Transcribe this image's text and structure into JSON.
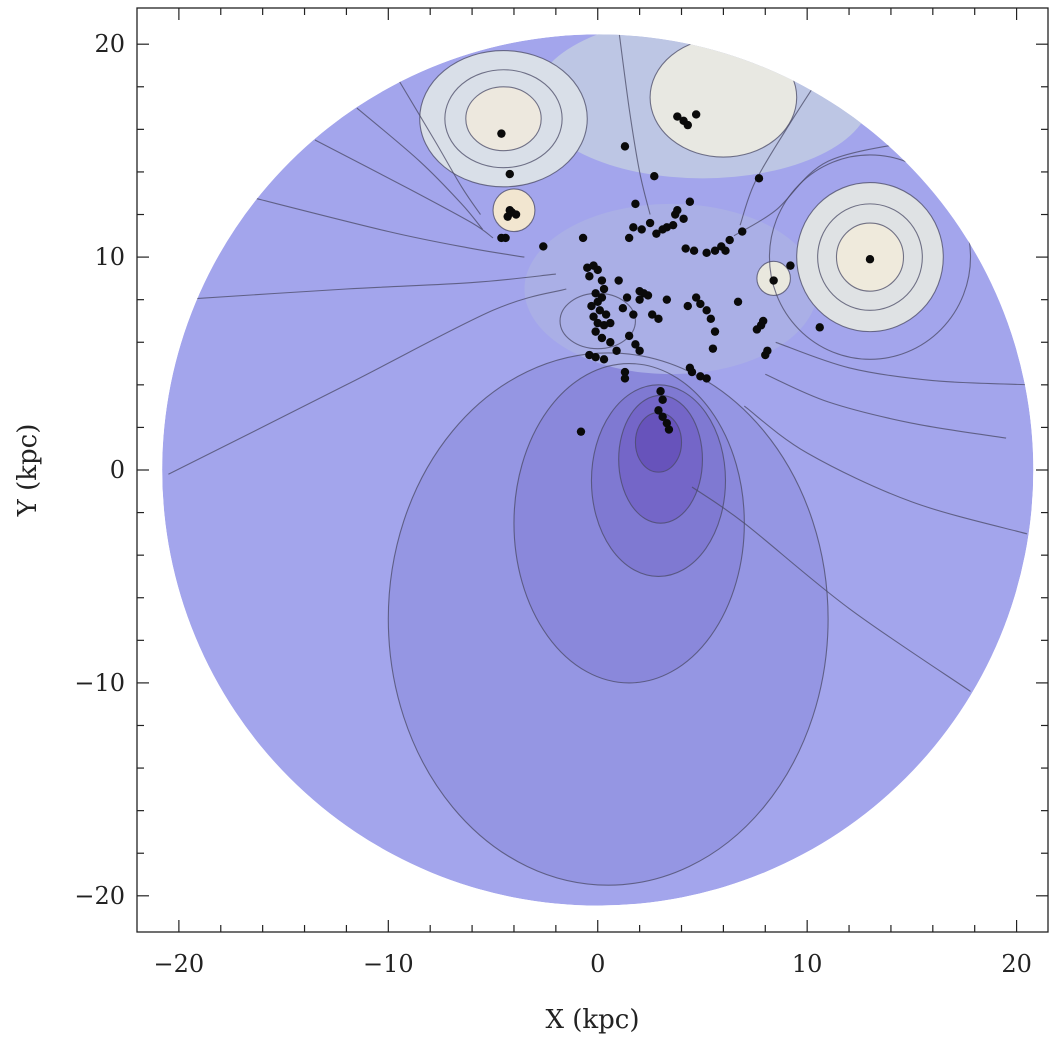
{
  "chart_data": {
    "type": "contour",
    "title": "",
    "xlabel": "X (kpc)",
    "ylabel": "Y (kpc)",
    "xlim": [
      -22,
      21.5
    ],
    "ylim": [
      -21.7,
      21.7
    ],
    "disk_radius_kpc": 20.8,
    "x_ticks": [
      {
        "value": -20,
        "label": "−20"
      },
      {
        "value": -10,
        "label": "−10"
      },
      {
        "value": 0,
        "label": "0"
      },
      {
        "value": 10,
        "label": "10"
      },
      {
        "value": 20,
        "label": "20"
      }
    ],
    "y_ticks": [
      {
        "value": 20,
        "label": "20"
      },
      {
        "value": 10,
        "label": "10"
      },
      {
        "value": 0,
        "label": "0"
      },
      {
        "value": -10,
        "label": "−10"
      },
      {
        "value": -20,
        "label": "−20"
      }
    ],
    "minor_tick_step": 2,
    "colors": {
      "disk_base": "#a3a5ec",
      "contour_line": "#4a4a66",
      "point": "#0a0a0a",
      "peak_fill": "#f2ecda"
    },
    "level_fills": [
      {
        "cx": 0.5,
        "cy": -7,
        "rx": 10.5,
        "ry": 12.5,
        "color": "#9596e3"
      },
      {
        "cx": 1.5,
        "cy": -2.5,
        "rx": 5.5,
        "ry": 7.5,
        "color": "#8a88db"
      },
      {
        "cx": 2.9,
        "cy": -0.5,
        "rx": 3.2,
        "ry": 4.5,
        "color": "#7f79d2"
      },
      {
        "cx": 3.0,
        "cy": 0.5,
        "rx": 2.0,
        "ry": 3.0,
        "color": "#7466c8"
      },
      {
        "cx": 2.9,
        "cy": 1.3,
        "rx": 1.1,
        "ry": 1.4,
        "color": "#6753bb"
      },
      {
        "cx": 0.0,
        "cy": 7.0,
        "rx": 1.8,
        "ry": 1.3,
        "color": "#7466c8"
      },
      {
        "cx": 3.5,
        "cy": 8.5,
        "rx": 7.0,
        "ry": 4.0,
        "color": "#aaafe6"
      },
      {
        "cx": 5.0,
        "cy": 17.5,
        "rx": 8.0,
        "ry": 3.8,
        "color": "#bdc6e4"
      },
      {
        "cx": -4.5,
        "cy": 16.5,
        "rx": 4.0,
        "ry": 3.2,
        "color": "#d9dfe8"
      },
      {
        "cx": -4.5,
        "cy": 16.5,
        "rx": 1.8,
        "ry": 1.5,
        "color": "#ede8de"
      },
      {
        "cx": 6.0,
        "cy": 17.5,
        "rx": 3.5,
        "ry": 2.8,
        "color": "#e8e8e2"
      },
      {
        "cx": 13.0,
        "cy": 10.0,
        "rx": 3.5,
        "ry": 3.5,
        "color": "#dfe2e4"
      },
      {
        "cx": 13.0,
        "cy": 10.0,
        "rx": 1.6,
        "ry": 1.6,
        "color": "#efeadc"
      },
      {
        "cx": -4.0,
        "cy": 12.2,
        "rx": 1.0,
        "ry": 1.0,
        "color": "#f2e6d0"
      },
      {
        "cx": 8.4,
        "cy": 9.0,
        "rx": 0.8,
        "ry": 0.8,
        "color": "#e9e8de"
      }
    ],
    "contour_rings": [
      {
        "cx": 0.5,
        "cy": -7,
        "rx": 10.5,
        "ry": 12.5
      },
      {
        "cx": 1.5,
        "cy": -2.5,
        "rx": 5.5,
        "ry": 7.5
      },
      {
        "cx": 2.9,
        "cy": -0.5,
        "rx": 3.2,
        "ry": 4.5
      },
      {
        "cx": 3.0,
        "cy": 0.5,
        "rx": 2.0,
        "ry": 3.0
      },
      {
        "cx": 2.9,
        "cy": 1.3,
        "rx": 1.1,
        "ry": 1.4
      },
      {
        "cx": 0.0,
        "cy": 7.0,
        "rx": 1.8,
        "ry": 1.3
      },
      {
        "cx": -4.5,
        "cy": 16.5,
        "rx": 4.0,
        "ry": 3.2
      },
      {
        "cx": -4.5,
        "cy": 16.5,
        "rx": 2.8,
        "ry": 2.3
      },
      {
        "cx": -4.5,
        "cy": 16.5,
        "rx": 1.8,
        "ry": 1.5
      },
      {
        "cx": 6.0,
        "cy": 17.5,
        "rx": 3.5,
        "ry": 2.8
      },
      {
        "cx": 13.0,
        "cy": 10.0,
        "rx": 4.8,
        "ry": 4.8
      },
      {
        "cx": 13.0,
        "cy": 10.0,
        "rx": 3.5,
        "ry": 3.5
      },
      {
        "cx": 13.0,
        "cy": 10.0,
        "rx": 2.5,
        "ry": 2.5
      },
      {
        "cx": 13.0,
        "cy": 10.0,
        "rx": 1.6,
        "ry": 1.6
      },
      {
        "cx": -4.0,
        "cy": 12.2,
        "rx": 1.0,
        "ry": 1.0
      },
      {
        "cx": 8.4,
        "cy": 9.0,
        "rx": 0.8,
        "ry": 0.8
      }
    ],
    "contour_lines": [
      [
        [
          -20.5,
          -0.2
        ],
        [
          -12,
          4
        ],
        [
          -5,
          7.5
        ],
        [
          -1.5,
          8.5
        ]
      ],
      [
        [
          -20.0,
          8.0
        ],
        [
          -12,
          8.5
        ],
        [
          -6,
          8.8
        ],
        [
          -2,
          9.2
        ]
      ],
      [
        [
          -16.5,
          12.8
        ],
        [
          -10,
          11.2
        ],
        [
          -6,
          10.4
        ],
        [
          -3.5,
          10.0
        ]
      ],
      [
        [
          -13.5,
          15.5
        ],
        [
          -9,
          13.2
        ],
        [
          -6,
          11.6
        ],
        [
          -5,
          10.9
        ]
      ],
      [
        [
          -11.5,
          17.0
        ],
        [
          -8.5,
          14.5
        ],
        [
          -6.5,
          12.5
        ],
        [
          -5.5,
          11.3
        ]
      ],
      [
        [
          -9.5,
          18.3
        ],
        [
          -7.8,
          15.5
        ],
        [
          -6.5,
          13.3
        ],
        [
          -5.6,
          12.0
        ]
      ],
      [
        [
          1.0,
          20.7
        ],
        [
          1.5,
          17
        ],
        [
          2.0,
          14.0
        ],
        [
          2.5,
          12.0
        ]
      ],
      [
        [
          20.5,
          -3.0
        ],
        [
          15,
          -1.5
        ],
        [
          10,
          0.8
        ],
        [
          7,
          3.0
        ]
      ],
      [
        [
          19.5,
          1.5
        ],
        [
          15,
          2.2
        ],
        [
          11,
          3.2
        ],
        [
          8,
          4.5
        ]
      ],
      [
        [
          17.8,
          -10.4
        ],
        [
          12,
          -6.5
        ],
        [
          7,
          -2.5
        ],
        [
          4.5,
          -0.8
        ]
      ],
      [
        [
          20.6,
          4.0
        ],
        [
          16,
          4.2
        ],
        [
          12,
          4.8
        ],
        [
          8.5,
          6.0
        ]
      ],
      [
        [
          15.5,
          15.5
        ],
        [
          11,
          14.5
        ],
        [
          8.5,
          12.2
        ],
        [
          6.5,
          11.0
        ]
      ],
      [
        [
          10.5,
          18.3
        ],
        [
          9,
          16
        ],
        [
          7.5,
          13.5
        ],
        [
          6.8,
          11.5
        ]
      ]
    ],
    "points": [
      [
        -4.6,
        15.8
      ],
      [
        -4.2,
        13.9
      ],
      [
        -4.2,
        12.2
      ],
      [
        -4.1,
        12.1
      ],
      [
        -3.9,
        12.0
      ],
      [
        -4.3,
        11.9
      ],
      [
        -4.6,
        10.9
      ],
      [
        -4.4,
        10.9
      ],
      [
        -2.6,
        10.5
      ],
      [
        -0.7,
        10.9
      ],
      [
        -0.5,
        9.5
      ],
      [
        -0.2,
        9.6
      ],
      [
        0.0,
        9.4
      ],
      [
        -0.4,
        9.1
      ],
      [
        0.2,
        8.9
      ],
      [
        0.3,
        8.5
      ],
      [
        -0.1,
        8.3
      ],
      [
        0.2,
        8.1
      ],
      [
        0.0,
        7.9
      ],
      [
        -0.3,
        7.7
      ],
      [
        0.1,
        7.5
      ],
      [
        0.4,
        7.3
      ],
      [
        -0.2,
        7.2
      ],
      [
        0.0,
        6.9
      ],
      [
        0.3,
        6.8
      ],
      [
        -0.1,
        6.5
      ],
      [
        0.2,
        6.2
      ],
      [
        0.6,
        6.0
      ],
      [
        -0.4,
        5.4
      ],
      [
        -0.1,
        5.3
      ],
      [
        0.3,
        5.2
      ],
      [
        0.9,
        5.6
      ],
      [
        1.3,
        4.6
      ],
      [
        1.3,
        4.3
      ],
      [
        1.0,
        8.9
      ],
      [
        1.4,
        8.1
      ],
      [
        1.2,
        7.6
      ],
      [
        1.7,
        7.3
      ],
      [
        1.5,
        6.3
      ],
      [
        1.8,
        5.9
      ],
      [
        2.0,
        5.6
      ],
      [
        2.0,
        8.4
      ],
      [
        2.2,
        8.3
      ],
      [
        2.4,
        8.2
      ],
      [
        2.6,
        7.3
      ],
      [
        2.9,
        7.1
      ],
      [
        3.3,
        8.0
      ],
      [
        1.5,
        10.9
      ],
      [
        1.7,
        11.4
      ],
      [
        2.1,
        11.3
      ],
      [
        2.5,
        11.6
      ],
      [
        2.8,
        11.1
      ],
      [
        3.1,
        11.3
      ],
      [
        3.3,
        11.4
      ],
      [
        3.6,
        11.5
      ],
      [
        3.7,
        12.0
      ],
      [
        4.1,
        11.8
      ],
      [
        3.8,
        12.2
      ],
      [
        4.4,
        12.6
      ],
      [
        1.8,
        12.5
      ],
      [
        1.3,
        15.2
      ],
      [
        2.7,
        13.8
      ],
      [
        3.8,
        16.6
      ],
      [
        4.1,
        16.4
      ],
      [
        4.3,
        16.2
      ],
      [
        4.7,
        16.7
      ],
      [
        4.2,
        10.4
      ],
      [
        4.6,
        10.3
      ],
      [
        5.2,
        10.2
      ],
      [
        5.6,
        10.3
      ],
      [
        5.9,
        10.5
      ],
      [
        6.3,
        10.8
      ],
      [
        6.1,
        10.3
      ],
      [
        6.9,
        11.2
      ],
      [
        7.7,
        13.7
      ],
      [
        8.4,
        8.9
      ],
      [
        9.2,
        9.6
      ],
      [
        7.8,
        6.8
      ],
      [
        7.6,
        6.6
      ],
      [
        7.9,
        7.0
      ],
      [
        8.1,
        5.6
      ],
      [
        8.0,
        5.4
      ],
      [
        10.6,
        6.7
      ],
      [
        13.0,
        9.9
      ],
      [
        4.4,
        4.8
      ],
      [
        4.5,
        4.6
      ],
      [
        4.9,
        4.4
      ],
      [
        5.2,
        4.3
      ],
      [
        5.5,
        5.7
      ],
      [
        3.0,
        3.7
      ],
      [
        3.1,
        3.3
      ],
      [
        2.9,
        2.8
      ],
      [
        3.1,
        2.5
      ],
      [
        3.3,
        2.2
      ],
      [
        3.4,
        1.9
      ],
      [
        -0.8,
        1.8
      ],
      [
        4.3,
        7.7
      ],
      [
        4.9,
        7.8
      ],
      [
        5.2,
        7.5
      ],
      [
        5.4,
        7.1
      ],
      [
        5.6,
        6.5
      ],
      [
        6.7,
        7.9
      ],
      [
        4.7,
        8.1
      ],
      [
        2.0,
        8.0
      ],
      [
        0.6,
        6.9
      ]
    ]
  }
}
